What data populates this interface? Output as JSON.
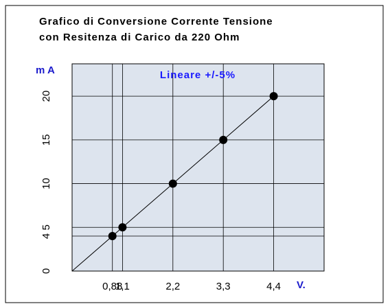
{
  "chart_data": {
    "type": "line",
    "title": [
      "Grafico di Conversione Corrente Tensione",
      "con Resitenza di Carico da 220 Ohm"
    ],
    "y_label": "m A",
    "x_label": "V.",
    "annotation": "Lineare +/-5%",
    "x": [
      0.88,
      1.1,
      2.2,
      3.3,
      4.4
    ],
    "series": [
      {
        "name": null,
        "color": "#000000",
        "values": [
          4,
          5,
          10,
          15,
          20
        ]
      }
    ],
    "xlim": [
      0,
      5.5
    ],
    "ylim": [
      0,
      23.7
    ],
    "xticks": [
      {
        "value": 0.88,
        "label": "0,88"
      },
      {
        "value": 1.1,
        "label": "1,1"
      },
      {
        "value": 2.2,
        "label": "2,2"
      },
      {
        "value": 3.3,
        "label": "3,3"
      },
      {
        "value": 4.4,
        "label": "4,4"
      }
    ],
    "yticks": [
      0,
      4,
      5,
      10,
      15,
      20
    ],
    "grid": true,
    "background": "#dde4ee"
  }
}
